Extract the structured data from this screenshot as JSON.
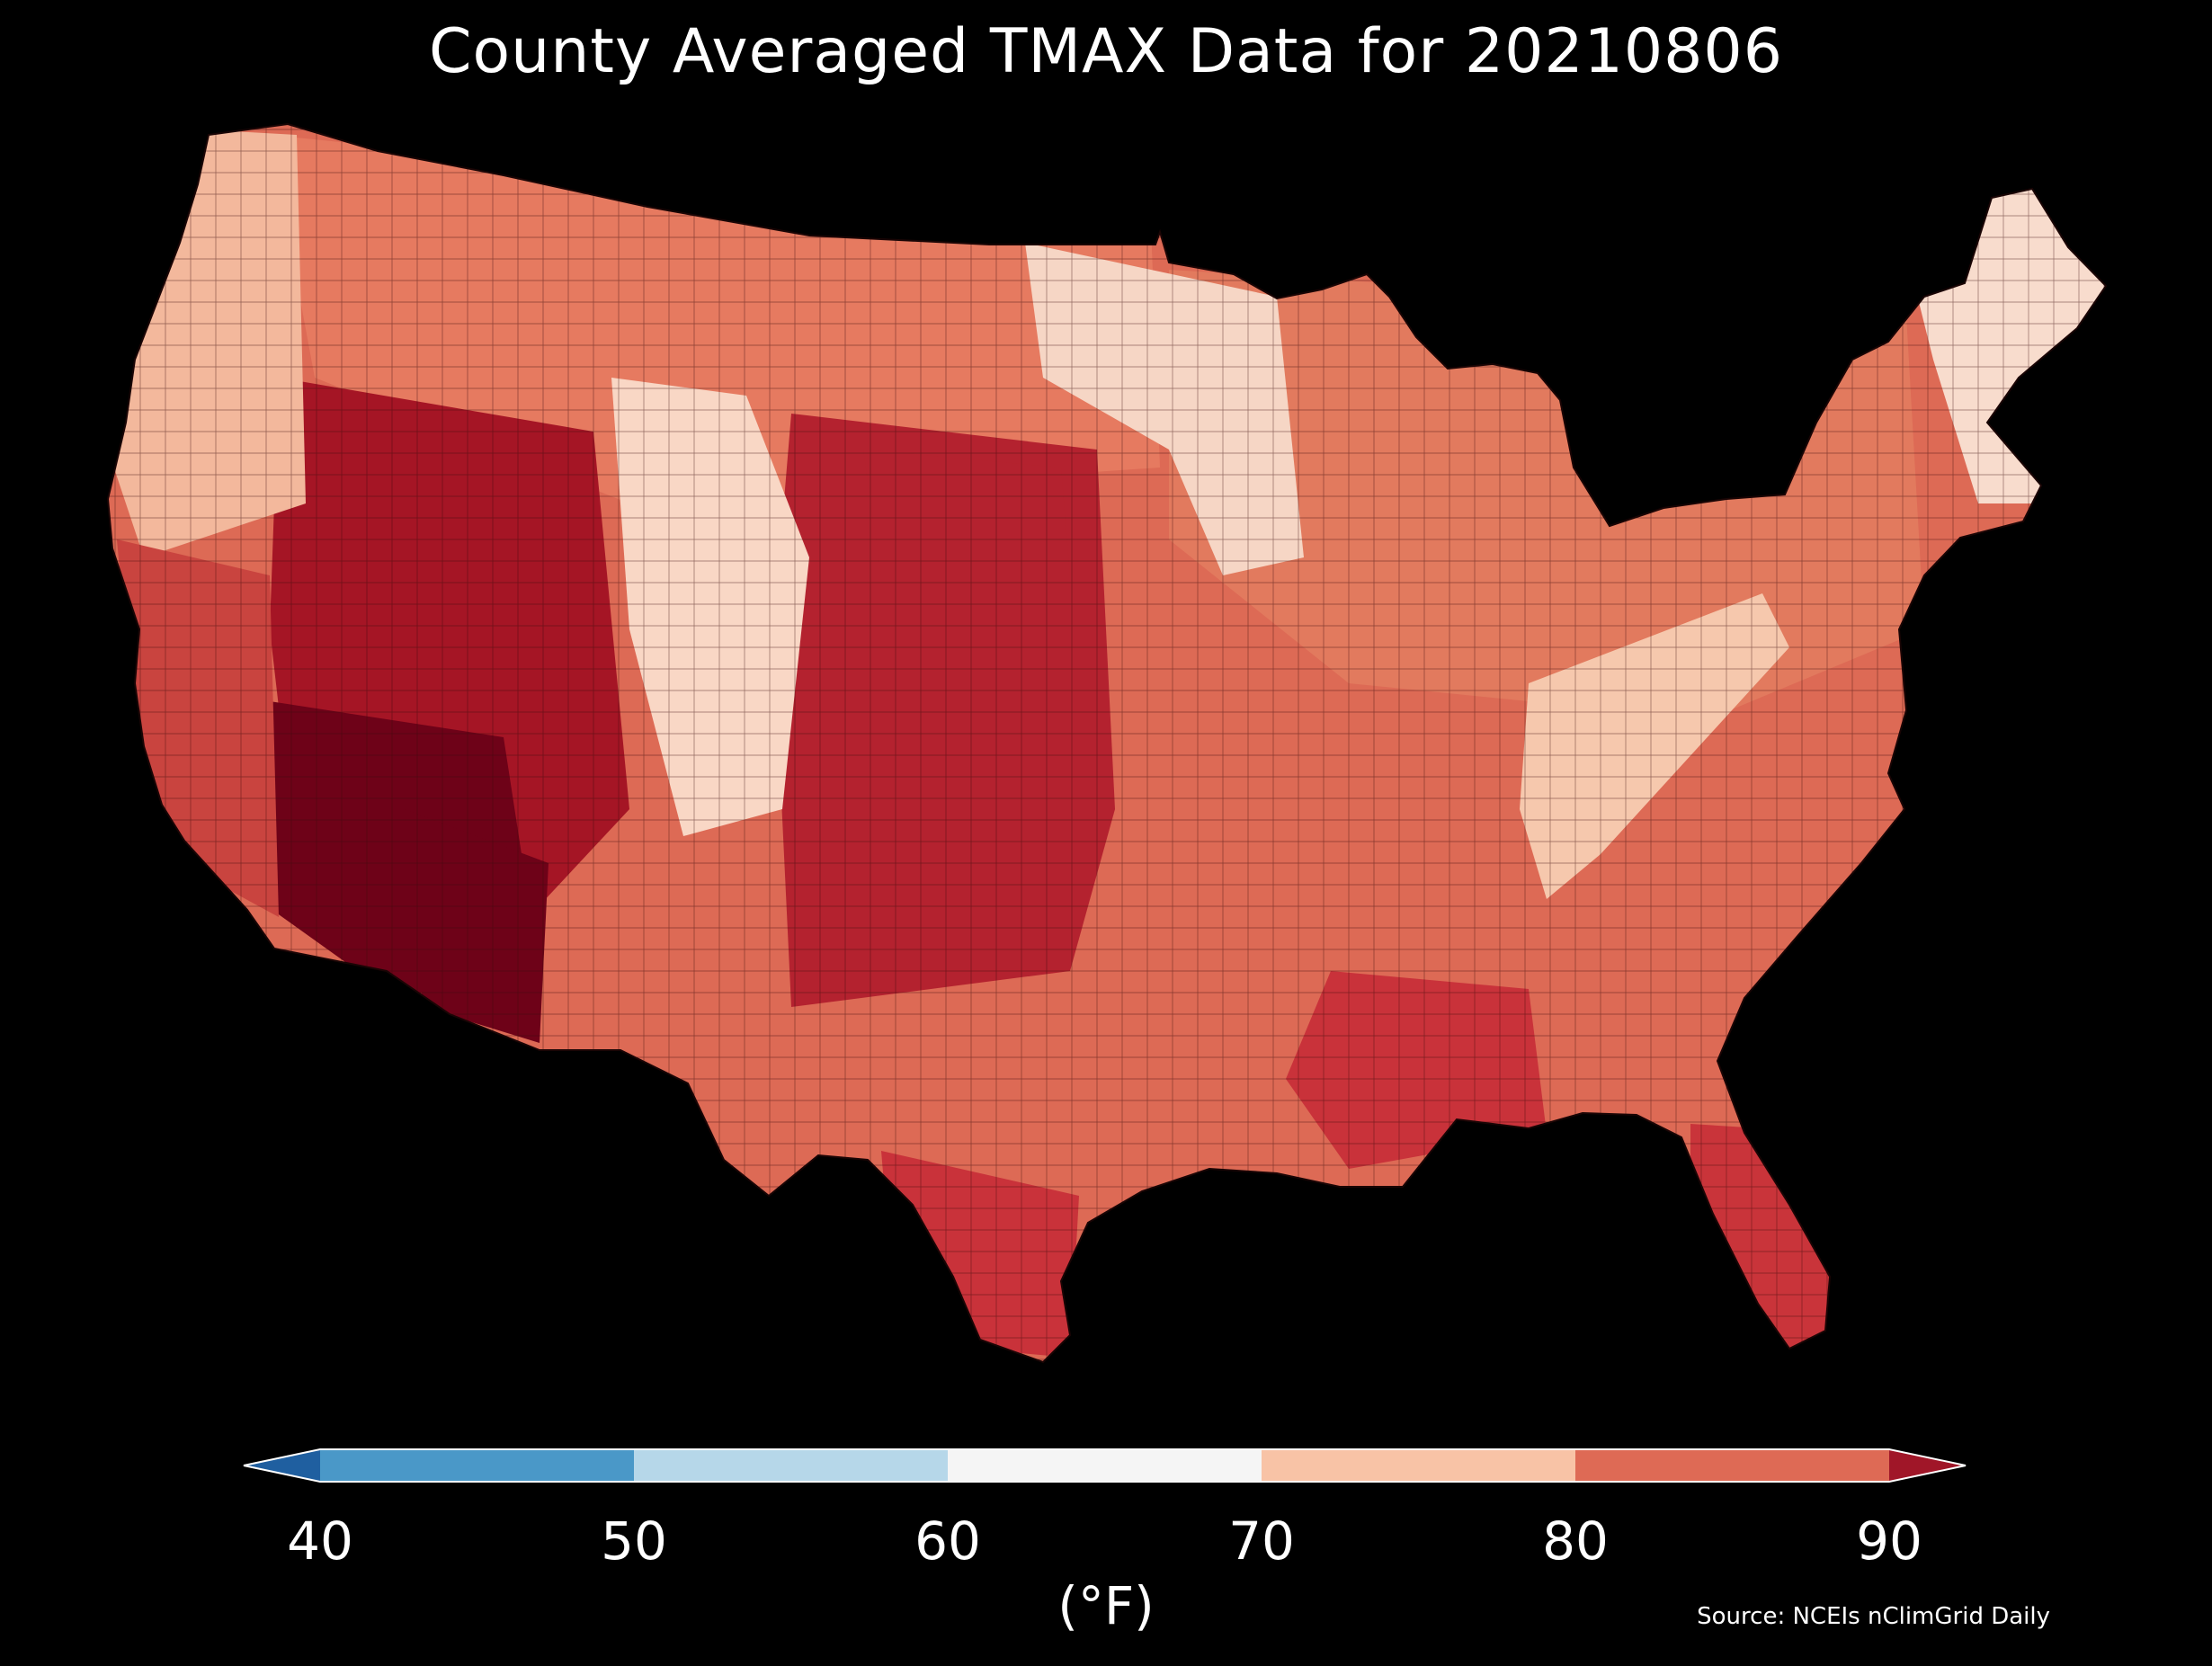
{
  "title": "County Averaged TMAX Data for 20210806",
  "source": "Source: NCEIs nClimGrid Daily",
  "colorbar": {
    "unit_label": "(°F)",
    "ticks": [
      "40",
      "50",
      "60",
      "70",
      "80",
      "90"
    ],
    "bins": [
      {
        "range": [
          null,
          40
        ],
        "color": "#1f5fa0"
      },
      {
        "range": [
          40,
          50
        ],
        "color": "#4a98c8"
      },
      {
        "range": [
          50,
          60
        ],
        "color": "#b6d7e9"
      },
      {
        "range": [
          60,
          70
        ],
        "color": "#f5f5f5"
      },
      {
        "range": [
          70,
          80
        ],
        "color": "#f8c3a6"
      },
      {
        "range": [
          80,
          90
        ],
        "color": "#de6a55"
      },
      {
        "range": [
          90,
          null
        ],
        "color": "#a01628"
      }
    ],
    "extend": "both"
  },
  "map": {
    "region": "Contiguous United States",
    "variable": "TMAX",
    "date": "20210806",
    "background_color": "#000000",
    "border_color": "#3a0c0c",
    "regional_palette": {
      "southwest_desert": "#6e0218",
      "great_basin": "#a51525",
      "california_coast": "#c9443f",
      "pacific_northwest": "#f3b89c",
      "northern_rockies": "#e67a60",
      "colorado_plateau_high": "#f9d7c5",
      "great_plains": "#b4222f",
      "upper_midwest": "#f6d6c5",
      "great_lakes_east": "#e27a5e",
      "appalachians": "#f6c8ad",
      "southeast": "#dd6a55",
      "gulf_coast": "#c9323a",
      "florida": "#c9343a",
      "new_england": "#f8dccd"
    }
  }
}
